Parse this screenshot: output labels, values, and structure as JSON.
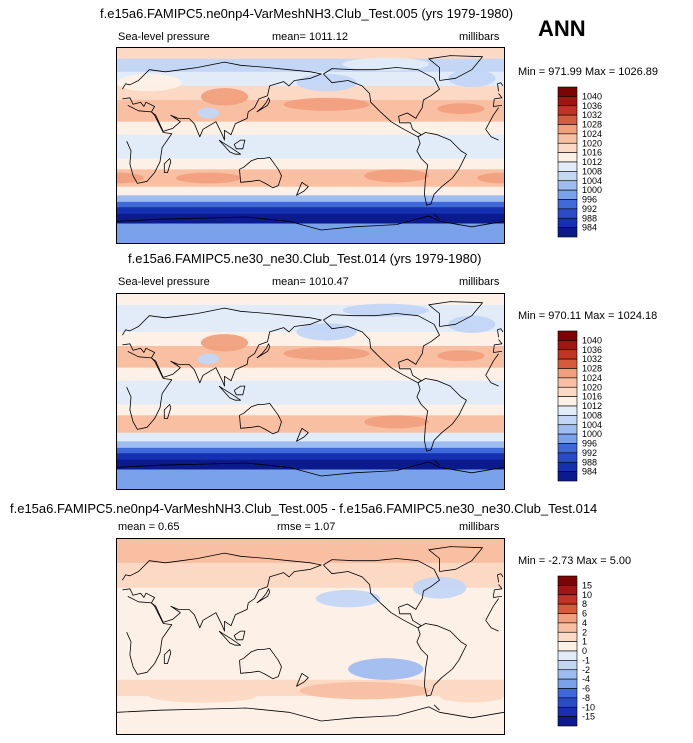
{
  "season": "ANN",
  "colors": {
    "scale": [
      "#0b1a8c",
      "#1530b0",
      "#2a4cc8",
      "#3f68d8",
      "#5a86e2",
      "#7aa2ea",
      "#9fbcf0",
      "#c3d6f5",
      "#e2ecf9",
      "#fdf0e6",
      "#fcd9c4",
      "#f8bfa2",
      "#f1a07e",
      "#e67e5c",
      "#d65a3c",
      "#bf3424",
      "#9e1710",
      "#7a0406"
    ]
  },
  "chart_data": [
    {
      "type": "heatmap",
      "title": "f.e15a6.FAMIPC5.ne0np4-VarMeshNH3.Club_Test.005 (yrs 1979-1980)",
      "variable": "Sea-level pressure",
      "stat": "mean= 1011.12",
      "units": "millibars",
      "minmax": "Min = 971.99 Max = 1026.89",
      "levels": [
        "1040",
        "1036",
        "1032",
        "1028",
        "1024",
        "1020",
        "1016",
        "1012",
        "1008",
        "1004",
        "1000",
        "996",
        "992",
        "988",
        "984"
      ],
      "bands": [
        {
          "lat_top": 90,
          "lat_bot": 80,
          "v": 1016
        },
        {
          "lat_top": 80,
          "lat_bot": 68,
          "v": 1006
        },
        {
          "lat_top": 68,
          "lat_bot": 55,
          "v": 1010
        },
        {
          "lat_top": 55,
          "lat_bot": 42,
          "v": 1016
        },
        {
          "lat_top": 42,
          "lat_bot": 22,
          "v": 1022
        },
        {
          "lat_top": 22,
          "lat_bot": 10,
          "v": 1013
        },
        {
          "lat_top": 10,
          "lat_bot": -12,
          "v": 1010
        },
        {
          "lat_top": -12,
          "lat_bot": -22,
          "v": 1015
        },
        {
          "lat_top": -22,
          "lat_bot": -38,
          "v": 1021
        },
        {
          "lat_top": -38,
          "lat_bot": -46,
          "v": 1012
        },
        {
          "lat_top": -46,
          "lat_bot": -52,
          "v": 1002
        },
        {
          "lat_top": -52,
          "lat_bot": -57,
          "v": 994
        },
        {
          "lat_top": -57,
          "lat_bot": -63,
          "v": 986
        },
        {
          "lat_top": -63,
          "lat_bot": -72,
          "v": 982
        },
        {
          "lat_top": -72,
          "lat_bot": -90,
          "v": 998
        }
      ],
      "features": [
        {
          "lon": 195,
          "lat": 38,
          "rx": 40,
          "ry": 6,
          "v": 1026
        },
        {
          "lon": 320,
          "lat": 34,
          "rx": 22,
          "ry": 5,
          "v": 1025
        },
        {
          "lon": 260,
          "lat": -28,
          "rx": 30,
          "ry": 6,
          "v": 1024
        },
        {
          "lon": 0,
          "lat": -30,
          "rx": 25,
          "ry": 5,
          "v": 1024
        },
        {
          "lon": 85,
          "lat": -30,
          "rx": 30,
          "ry": 5,
          "v": 1024
        },
        {
          "lon": 100,
          "lat": 45,
          "rx": 22,
          "ry": 8,
          "v": 1026
        },
        {
          "lon": 30,
          "lat": 58,
          "rx": 30,
          "ry": 8,
          "v": 1012
        },
        {
          "lon": 195,
          "lat": 58,
          "rx": 28,
          "ry": 8,
          "v": 1004
        },
        {
          "lon": 330,
          "lat": 62,
          "rx": 22,
          "ry": 8,
          "v": 1004
        },
        {
          "lon": 250,
          "lat": 75,
          "rx": 40,
          "ry": 6,
          "v": 1010
        },
        {
          "lon": 85,
          "lat": 30,
          "rx": 10,
          "ry": 5,
          "v": 1006
        }
      ]
    },
    {
      "type": "heatmap",
      "title": "f.e15a6.FAMIPC5.ne30_ne30.Club_Test.014 (yrs 1979-1980)",
      "variable": "Sea-level pressure",
      "stat": "mean= 1010.47",
      "units": "millibars",
      "minmax": "Min = 970.11 Max = 1024.18",
      "levels": [
        "1040",
        "1036",
        "1032",
        "1028",
        "1024",
        "1020",
        "1016",
        "1012",
        "1008",
        "1004",
        "1000",
        "996",
        "992",
        "988",
        "984"
      ],
      "bands": [
        {
          "lat_top": 90,
          "lat_bot": 80,
          "v": 1012
        },
        {
          "lat_top": 80,
          "lat_bot": 68,
          "v": 1008
        },
        {
          "lat_top": 68,
          "lat_bot": 55,
          "v": 1010
        },
        {
          "lat_top": 55,
          "lat_bot": 42,
          "v": 1014
        },
        {
          "lat_top": 42,
          "lat_bot": 22,
          "v": 1021
        },
        {
          "lat_top": 22,
          "lat_bot": 10,
          "v": 1013
        },
        {
          "lat_top": 10,
          "lat_bot": -12,
          "v": 1010
        },
        {
          "lat_top": -12,
          "lat_bot": -22,
          "v": 1015
        },
        {
          "lat_top": -22,
          "lat_bot": -38,
          "v": 1020
        },
        {
          "lat_top": -38,
          "lat_bot": -46,
          "v": 1011
        },
        {
          "lat_top": -46,
          "lat_bot": -52,
          "v": 1001
        },
        {
          "lat_top": -52,
          "lat_bot": -57,
          "v": 993
        },
        {
          "lat_top": -57,
          "lat_bot": -63,
          "v": 985
        },
        {
          "lat_top": -63,
          "lat_bot": -72,
          "v": 981
        },
        {
          "lat_top": -72,
          "lat_bot": -90,
          "v": 996
        }
      ],
      "features": [
        {
          "lon": 195,
          "lat": 35,
          "rx": 40,
          "ry": 6,
          "v": 1024
        },
        {
          "lon": 320,
          "lat": 33,
          "rx": 22,
          "ry": 5,
          "v": 1024
        },
        {
          "lon": 260,
          "lat": -28,
          "rx": 30,
          "ry": 6,
          "v": 1024
        },
        {
          "lon": 0,
          "lat": -30,
          "rx": 25,
          "ry": 5,
          "v": 1023
        },
        {
          "lon": 85,
          "lat": -30,
          "rx": 30,
          "ry": 5,
          "v": 1023
        },
        {
          "lon": 100,
          "lat": 45,
          "rx": 22,
          "ry": 8,
          "v": 1025
        },
        {
          "lon": 195,
          "lat": 55,
          "rx": 28,
          "ry": 8,
          "v": 1004
        },
        {
          "lon": 330,
          "lat": 62,
          "rx": 22,
          "ry": 8,
          "v": 1004
        },
        {
          "lon": 250,
          "lat": 75,
          "rx": 40,
          "ry": 6,
          "v": 1006
        },
        {
          "lon": 85,
          "lat": 30,
          "rx": 10,
          "ry": 5,
          "v": 1006
        }
      ]
    },
    {
      "type": "heatmap",
      "title": "f.e15a6.FAMIPC5.ne0np4-VarMeshNH3.Club_Test.005 - f.e15a6.FAMIPC5.ne30_ne30.Club_Test.014",
      "variable": "",
      "stat_left": "mean =   0.65",
      "stat": "rmse =  1.07",
      "units": "millibars",
      "minmax": "Min = -2.73 Max =   5.00",
      "levels": [
        "15",
        "10",
        "8",
        "6",
        "4",
        "2",
        "1",
        "0",
        "-1",
        "-2",
        "-4",
        "-6",
        "-8",
        "-10",
        "-15"
      ],
      "bands": [
        {
          "lat_top": 90,
          "lat_bot": 68,
          "v": 2.5
        },
        {
          "lat_top": 68,
          "lat_bot": 45,
          "v": 1.5
        },
        {
          "lat_top": 45,
          "lat_bot": -40,
          "v": 0.5
        },
        {
          "lat_top": -40,
          "lat_bot": -55,
          "v": 1.5
        },
        {
          "lat_top": -55,
          "lat_bot": -70,
          "v": 0.5
        },
        {
          "lat_top": -70,
          "lat_bot": -90,
          "v": 0.5
        }
      ],
      "features": [
        {
          "lon": 210,
          "lat": 78,
          "rx": 80,
          "ry": 8,
          "v": 3
        },
        {
          "lon": 40,
          "lat": 78,
          "rx": 60,
          "ry": 8,
          "v": 3
        },
        {
          "lon": 140,
          "lat": 55,
          "rx": 40,
          "ry": 10,
          "v": 1.5
        },
        {
          "lon": 215,
          "lat": 35,
          "rx": 30,
          "ry": 8,
          "v": -1.5
        },
        {
          "lon": 300,
          "lat": 45,
          "rx": 25,
          "ry": 10,
          "v": -1.5
        },
        {
          "lon": 250,
          "lat": -30,
          "rx": 35,
          "ry": 10,
          "v": -2.5
        },
        {
          "lon": 230,
          "lat": -50,
          "rx": 60,
          "ry": 8,
          "v": 2.5
        },
        {
          "lon": 80,
          "lat": -55,
          "rx": 50,
          "ry": 6,
          "v": 1.5
        },
        {
          "lon": 330,
          "lat": -55,
          "rx": 30,
          "ry": 6,
          "v": 1.5
        }
      ]
    }
  ]
}
